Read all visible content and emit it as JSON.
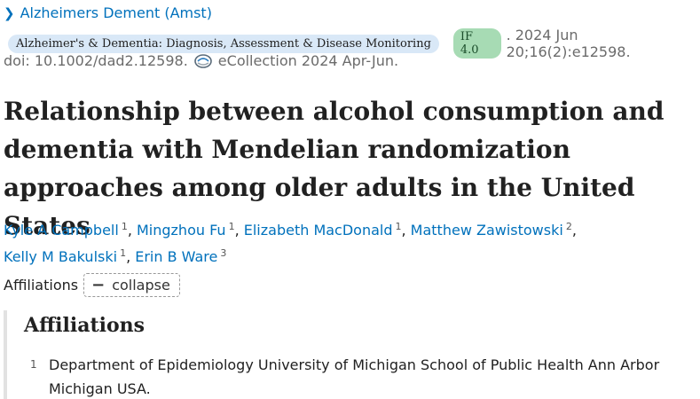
{
  "journal": {
    "short_name": "Alzheimers Dement (Amst)",
    "full_name": "Alzheimer's & Dementia: Diagnosis, Assessment & Disease Monitoring",
    "impact_factor": "IF 4.0",
    "citation": ". 2024 Jun 20;16(2):e12598.",
    "doi": "doi: 10.1002/dad2.12598.",
    "ecollection": "eCollection 2024 Apr-Jun."
  },
  "article": {
    "title": "Relationship between alcohol consumption and dementia with Mendelian randomization approaches among older adults in the United States"
  },
  "authors": [
    {
      "name": "Kyle A Campbell",
      "aff": "1"
    },
    {
      "name": "Mingzhou Fu",
      "aff": "1"
    },
    {
      "name": "Elizabeth MacDonald",
      "aff": "1"
    },
    {
      "name": "Matthew Zawistowski",
      "aff": "2"
    },
    {
      "name": "Kelly M Bakulski",
      "aff": "1"
    },
    {
      "name": "Erin B Ware",
      "aff": "3"
    }
  ],
  "affiliations": {
    "label": "Affiliations",
    "toggle_label": "collapse",
    "heading": "Affiliations",
    "items": [
      {
        "num": "1",
        "text": "Department of Epidemiology University of Michigan School of Public Health Ann Arbor Michigan USA."
      }
    ]
  },
  "icons": {
    "journal_chevron": "chevron-right-icon",
    "ecollection": "ecollection-icon",
    "collapse": "minus-icon"
  },
  "colors": {
    "link": "#0071bc",
    "journal_pill": "#d9e8f7",
    "if_badge": "#a7dbb4"
  }
}
